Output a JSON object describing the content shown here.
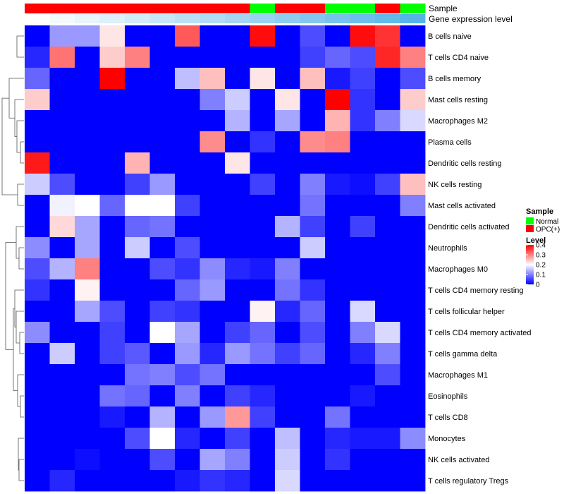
{
  "chart_data": {
    "type": "heatmap",
    "tracks": [
      "Sample",
      "Gene expression level"
    ],
    "rows": [
      "B cells naive",
      "T cells CD4 naive",
      "B cells memory",
      "Mast cells resting",
      "Macrophages M2",
      "Plasma cells",
      "Dendritic cells resting",
      "NK cells resting",
      "Mast cells activated",
      "Dendritic cells activated",
      "Neutrophils",
      "Macrophages M0",
      "T cells CD4 memory resting",
      "T cells follicular helper",
      "T cells CD4 memory activated",
      "T cells gamma delta",
      "Macrophages M1",
      "Eosinophils",
      "T cells CD8",
      "Monocytes",
      "NK cells activated",
      "T cells regulatory  Tregs"
    ],
    "sample_groups": [
      "OPC(+)",
      "OPC(+)",
      "OPC(+)",
      "OPC(+)",
      "OPC(+)",
      "OPC(+)",
      "OPC(+)",
      "OPC(+)",
      "OPC(+)",
      "Normal",
      "OPC(+)",
      "OPC(+)",
      "Normal",
      "Normal",
      "OPC(+)",
      "Normal"
    ],
    "expression_level": [
      0.0,
      0.07,
      0.14,
      0.2,
      0.27,
      0.33,
      0.4,
      0.47,
      0.53,
      0.6,
      0.67,
      0.73,
      0.8,
      0.87,
      0.93,
      1.0
    ],
    "values": [
      [
        0.0,
        0.12,
        0.12,
        0.22,
        0.0,
        0.0,
        0.33,
        0.0,
        0.0,
        0.39,
        0.0,
        0.06,
        0.0,
        0.39,
        0.36,
        0.0
      ],
      [
        0.03,
        0.31,
        0.0,
        0.24,
        0.3,
        0.0,
        0.0,
        0.0,
        0.0,
        0.0,
        0.0,
        0.05,
        0.08,
        0.06,
        0.37,
        0.3
      ],
      [
        0.08,
        0.0,
        0.0,
        0.4,
        0.0,
        0.0,
        0.15,
        0.25,
        0.0,
        0.22,
        0.0,
        0.25,
        0.02,
        0.05,
        0.0,
        0.06
      ],
      [
        0.24,
        0.0,
        0.0,
        0.0,
        0.0,
        0.0,
        0.0,
        0.1,
        0.16,
        0.0,
        0.22,
        0.0,
        0.4,
        0.04,
        0.0,
        0.24
      ],
      [
        0.0,
        0.0,
        0.0,
        0.0,
        0.0,
        0.0,
        0.0,
        0.0,
        0.14,
        0.0,
        0.13,
        0.0,
        0.26,
        0.04,
        0.1,
        0.17
      ],
      [
        0.0,
        0.0,
        0.0,
        0.0,
        0.0,
        0.0,
        0.0,
        0.29,
        0.0,
        0.04,
        0.0,
        0.29,
        0.3,
        0.0,
        0.0,
        0.0
      ],
      [
        0.38,
        0.0,
        0.0,
        0.0,
        0.26,
        0.0,
        0.0,
        0.0,
        0.22,
        0.0,
        0.0,
        0.0,
        0.0,
        0.0,
        0.0,
        0.0
      ],
      [
        0.16,
        0.06,
        0.0,
        0.0,
        0.05,
        0.12,
        0.0,
        0.0,
        0.0,
        0.05,
        0.0,
        0.1,
        0.02,
        0.01,
        0.05,
        0.25
      ],
      [
        0.0,
        0.19,
        0.2,
        0.08,
        0.2,
        0.2,
        0.05,
        0.0,
        0.0,
        0.0,
        0.0,
        0.09,
        0.0,
        0.0,
        0.0,
        0.1
      ],
      [
        0.0,
        0.23,
        0.13,
        0.0,
        0.08,
        0.09,
        0.0,
        0.0,
        0.0,
        0.0,
        0.14,
        0.05,
        0.0,
        0.05,
        0.0,
        0.0
      ],
      [
        0.11,
        0.0,
        0.13,
        0.0,
        0.16,
        0.0,
        0.06,
        0.0,
        0.0,
        0.0,
        0.0,
        0.16,
        0.0,
        0.0,
        0.0,
        0.0
      ],
      [
        0.06,
        0.14,
        0.3,
        0.0,
        0.0,
        0.06,
        0.04,
        0.11,
        0.03,
        0.02,
        0.1,
        0.0,
        0.0,
        0.0,
        0.0,
        0.0
      ],
      [
        0.04,
        0.0,
        0.21,
        0.0,
        0.0,
        0.0,
        0.08,
        0.12,
        0.0,
        0.0,
        0.09,
        0.04,
        0.0,
        0.0,
        0.0,
        0.0
      ],
      [
        0.0,
        0.0,
        0.13,
        0.06,
        0.0,
        0.05,
        0.04,
        0.0,
        0.0,
        0.21,
        0.03,
        0.08,
        0.0,
        0.17,
        0.0,
        0.0
      ],
      [
        0.11,
        0.0,
        0.0,
        0.05,
        0.0,
        0.2,
        0.13,
        0.0,
        0.05,
        0.08,
        0.0,
        0.06,
        0.0,
        0.1,
        0.17,
        0.0
      ],
      [
        0.0,
        0.16,
        0.0,
        0.05,
        0.07,
        0.0,
        0.12,
        0.03,
        0.12,
        0.09,
        0.05,
        0.08,
        0.0,
        0.03,
        0.1,
        0.0
      ],
      [
        0.0,
        0.0,
        0.0,
        0.0,
        0.09,
        0.1,
        0.06,
        0.09,
        0.0,
        0.0,
        0.0,
        0.0,
        0.0,
        0.0,
        0.06,
        0.0
      ],
      [
        0.0,
        0.0,
        0.0,
        0.09,
        0.08,
        0.0,
        0.1,
        0.0,
        0.05,
        0.03,
        0.0,
        0.0,
        0.0,
        0.02,
        0.0,
        0.0
      ],
      [
        0.0,
        0.0,
        0.0,
        0.02,
        0.0,
        0.14,
        0.0,
        0.12,
        0.28,
        0.05,
        0.0,
        0.0,
        0.09,
        0.0,
        0.0,
        0.0
      ],
      [
        0.0,
        0.0,
        0.0,
        0.0,
        0.06,
        0.2,
        0.03,
        0.0,
        0.05,
        0.0,
        0.15,
        0.0,
        0.03,
        0.02,
        0.02,
        0.11
      ],
      [
        0.0,
        0.0,
        0.01,
        0.0,
        0.0,
        0.06,
        0.0,
        0.13,
        0.1,
        0.0,
        0.16,
        0.0,
        0.04,
        0.0,
        0.0,
        0.0
      ],
      [
        0.0,
        0.03,
        0.0,
        0.0,
        0.0,
        0.0,
        0.02,
        0.04,
        0.03,
        0.0,
        0.17,
        0.0,
        0.0,
        0.0,
        0.0,
        0.0
      ]
    ],
    "legend": {
      "sample_title": "Sample",
      "sample_items": [
        {
          "label": "Normal",
          "color": "#00ff00"
        },
        {
          "label": "OPC(+)",
          "color": "#ff0000"
        }
      ],
      "level_title": "Level",
      "level_ticks": [
        "0.4",
        "0.3",
        "0.2",
        "0.1",
        "0"
      ],
      "level_tick_values": [
        0.4,
        0.3,
        0.2,
        0.1,
        0
      ],
      "placement": "right"
    },
    "color_scale": {
      "low": "#0000ff",
      "mid": "#ffffff",
      "high": "#ff0000",
      "min": 0,
      "mid_value": 0.2,
      "max": 0.4
    },
    "gene_level_colors": {
      "low": "#ffffff",
      "high": "#56b4e9"
    }
  }
}
